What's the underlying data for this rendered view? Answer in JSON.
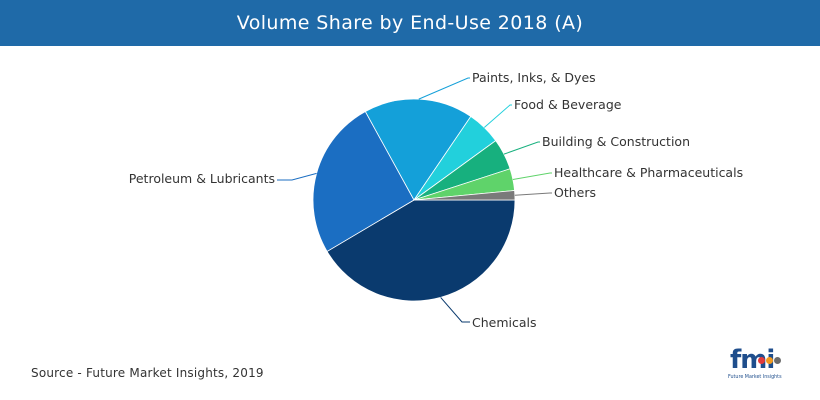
{
  "header": {
    "title": "Volume Share by End-Use 2018 (A)"
  },
  "chart_data": {
    "type": "pie",
    "title": "Volume Share by End-Use 2018 (A)",
    "unit": "%",
    "slices": [
      {
        "label": "Chemicals",
        "value": 41.5,
        "color": "#0a3a6e"
      },
      {
        "label": "Petroleum & Lubricants",
        "value": 25.5,
        "color": "#1b6ec2"
      },
      {
        "label": "Paints, Inks, & Dyes",
        "value": 17.5,
        "color": "#14a0d9"
      },
      {
        "label": "Food & Beverage",
        "value": 5.5,
        "color": "#22d0dc"
      },
      {
        "label": "Building & Construction",
        "value": 5.0,
        "color": "#17b07e"
      },
      {
        "label": "Healthcare & Pharmaceuticals",
        "value": 3.5,
        "color": "#5fd36a"
      },
      {
        "label": "Others",
        "value": 1.5,
        "color": "#7a7a7a"
      }
    ]
  },
  "footer": {
    "source": "Source - Future Market Insights, 2019",
    "logo_text": "fmi",
    "logo_tagline": "Future Market Insights",
    "logo_dot_colors": [
      "#e23b3b",
      "#f39a1e",
      "#6b6b6b"
    ]
  }
}
